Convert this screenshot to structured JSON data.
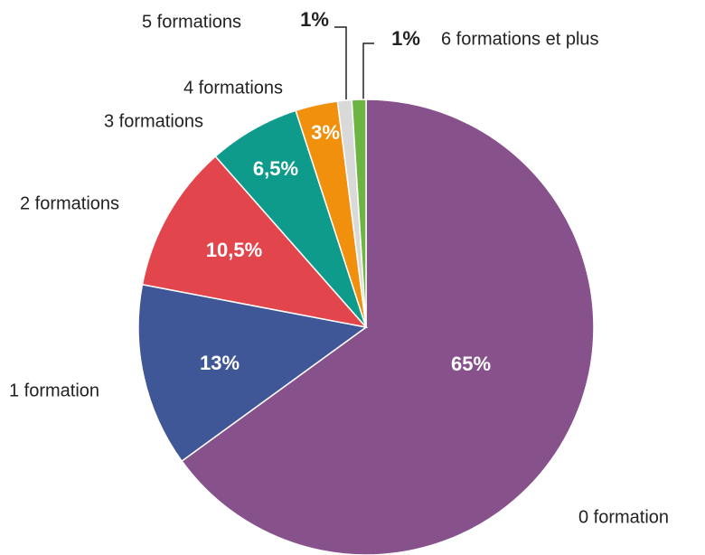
{
  "chart_data": {
    "type": "pie",
    "categories": [
      "0 formation",
      "1 formation",
      "2 formations",
      "3 formations",
      "4 formations",
      "5 formations",
      "6 formations et plus"
    ],
    "values": [
      65,
      13,
      10.5,
      6.5,
      3,
      1,
      1
    ],
    "value_labels": [
      "65%",
      "13%",
      "10,5%",
      "6,5%",
      "3%",
      "1%",
      "1%"
    ],
    "colors": [
      "#87518c",
      "#3f5797",
      "#e2454b",
      "#0f9b8b",
      "#f0900c",
      "#d9d9d9",
      "#6db543"
    ]
  }
}
